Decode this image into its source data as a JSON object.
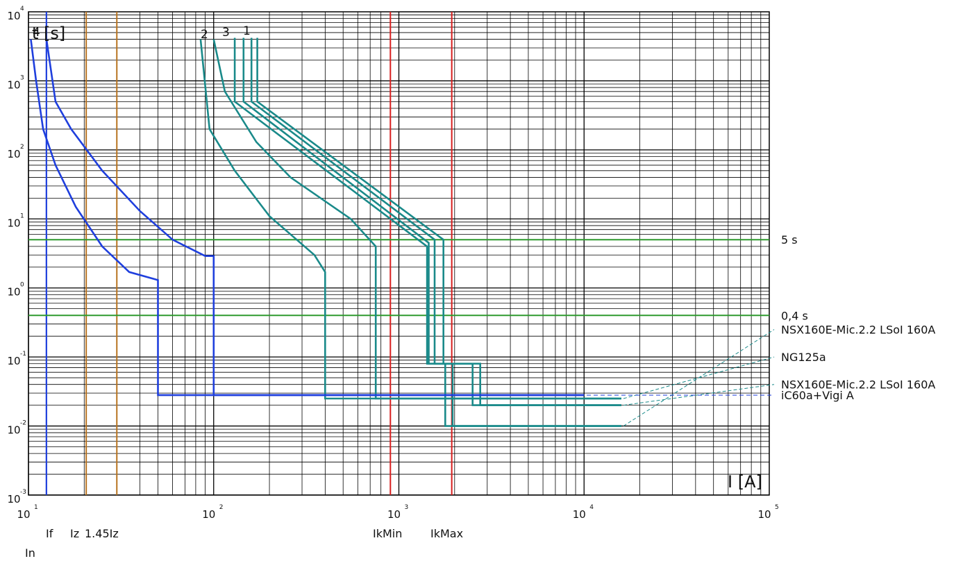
{
  "chart_data": {
    "type": "line",
    "title": "",
    "xlabel": "I [A]",
    "ylabel": "t [s]",
    "xscale": "log",
    "yscale": "log",
    "xlim": [
      10,
      100000
    ],
    "ylim": [
      0.001,
      10000
    ],
    "x_ticks": [
      {
        "base": "10",
        "exp": "1",
        "value": 10
      },
      {
        "base": "10",
        "exp": "2",
        "value": 100
      },
      {
        "base": "10",
        "exp": "3",
        "value": 1000
      },
      {
        "base": "10",
        "exp": "4",
        "value": 10000
      },
      {
        "base": "10",
        "exp": "5",
        "value": 100000
      }
    ],
    "y_ticks": [
      {
        "base": "10",
        "exp": "-3",
        "value": 0.001
      },
      {
        "base": "10",
        "exp": "-2",
        "value": 0.01
      },
      {
        "base": "10",
        "exp": "-1",
        "value": 0.1
      },
      {
        "base": "10",
        "exp": "0",
        "value": 1
      },
      {
        "base": "10",
        "exp": "1",
        "value": 10
      },
      {
        "base": "10",
        "exp": "2",
        "value": 100
      },
      {
        "base": "10",
        "exp": "3",
        "value": 1000
      },
      {
        "base": "10",
        "exp": "4",
        "value": 10000
      }
    ],
    "grid": true,
    "vertical_markers": [
      {
        "label": "In",
        "x": 12.5,
        "color": "#1f3fdd"
      },
      {
        "label": "If",
        "x": 12.5,
        "color": "#1f3fdd"
      },
      {
        "label": "Iz",
        "x": 20.5,
        "color": "#b8731f"
      },
      {
        "label": "1.45Iz",
        "x": 30,
        "color": "#b8731f"
      },
      {
        "label": "IkMin",
        "x": 900,
        "color": "#d81e1e"
      },
      {
        "label": "IkMax",
        "x": 1930,
        "color": "#d81e1e"
      }
    ],
    "horizontal_markers": [
      {
        "label": "5 s",
        "y": 5,
        "color": "#2e9a2e"
      },
      {
        "label": "0,4 s",
        "y": 0.4,
        "color": "#2e9a2e"
      }
    ],
    "series": [
      {
        "name": "NSX160E-Mic.2.2 LSoI 160A",
        "number": "1",
        "color": "#1a8a8a",
        "label_y": 0.25,
        "end_t": 0.01,
        "curves": [
          [
            [
              172,
              4200
            ],
            [
              172,
              500
            ],
            [
              1740,
              5
            ],
            [
              1740,
              0.08
            ],
            [
              2750,
              0.08
            ],
            [
              2750,
              0.02
            ],
            [
              15900,
              0.02
            ]
          ],
          [
            [
              160,
              4200
            ],
            [
              160,
              500
            ],
            [
              1560,
              5
            ],
            [
              1560,
              0.08
            ],
            [
              2500,
              0.08
            ],
            [
              2500,
              0.02
            ],
            [
              15900,
              0.02
            ]
          ],
          [
            [
              145,
              4200
            ],
            [
              145,
              500
            ],
            [
              1450,
              4.5
            ],
            [
              1450,
              0.08
            ],
            [
              1950,
              0.08
            ],
            [
              1950,
              0.01
            ],
            [
              15900,
              0.01
            ]
          ],
          [
            [
              130,
              4200
            ],
            [
              130,
              500
            ],
            [
              1420,
              4
            ],
            [
              1420,
              0.08
            ],
            [
              1780,
              0.08
            ],
            [
              1780,
              0.01
            ],
            [
              15900,
              0.01
            ]
          ]
        ]
      },
      {
        "name": "NG125a",
        "number": "2",
        "color": "#1a8a8a",
        "label_y": 0.1,
        "end_t": 0.025,
        "curves": [
          [
            [
              85,
              4000
            ],
            [
              95,
              200
            ],
            [
              130,
              50
            ],
            [
              200,
              11
            ],
            [
              350,
              3
            ],
            [
              400,
              1.7
            ],
            [
              400,
              0.025
            ],
            [
              15900,
              0.025
            ]
          ],
          [
            [
              100,
              4000
            ],
            [
              115,
              700
            ],
            [
              170,
              130
            ],
            [
              260,
              40
            ],
            [
              550,
              10
            ],
            [
              750,
              4
            ],
            [
              750,
              0.025
            ],
            [
              15900,
              0.025
            ]
          ]
        ]
      },
      {
        "name": "NSX160E-Mic.2.2 LSoI 160A",
        "number": "3",
        "color": "#1a8a8a",
        "label_y": 0.04,
        "end_t": 0.02,
        "curves": []
      },
      {
        "name": "iC60a+Vigi A",
        "number": "4",
        "color": "#1f3fdd",
        "label_y": 0.028,
        "end_t": 0.028,
        "curves": [
          [
            [
              10.3,
              4000
            ],
            [
              11,
              1000
            ],
            [
              12,
              200
            ],
            [
              14,
              60
            ],
            [
              18,
              15
            ],
            [
              25,
              4
            ],
            [
              35,
              1.7
            ],
            [
              50,
              1.3
            ],
            [
              50,
              0.028
            ],
            [
              10000,
              0.028
            ]
          ],
          [
            [
              12.5,
              4000
            ],
            [
              14,
              500
            ],
            [
              17,
              200
            ],
            [
              25,
              50
            ],
            [
              40,
              13
            ],
            [
              60,
              5
            ],
            [
              90,
              2.9
            ],
            [
              100,
              2.9
            ],
            [
              100,
              0.028
            ],
            [
              10000,
              0.028
            ]
          ]
        ]
      }
    ]
  }
}
